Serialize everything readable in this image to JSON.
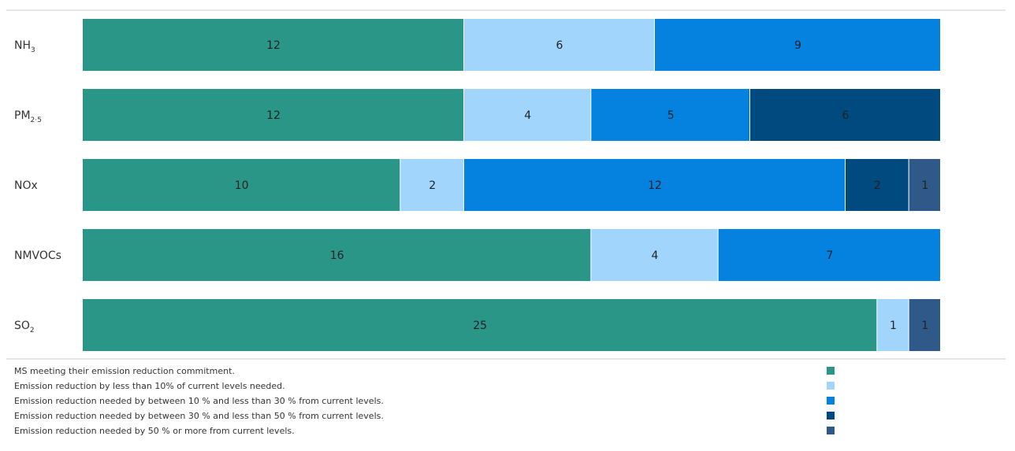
{
  "chart_data": {
    "type": "bar",
    "orientation": "horizontal",
    "stacked": true,
    "categories": [
      {
        "label": "NH",
        "sub": "3"
      },
      {
        "label": "PM",
        "sub": "2·5"
      },
      {
        "label": "NOx",
        "sub": ""
      },
      {
        "label": "NMVOCs",
        "sub": ""
      },
      {
        "label": "SO",
        "sub": "2"
      }
    ],
    "series": [
      {
        "name": "MS meeting their emission reduction commitment.",
        "color": "#2a9688",
        "values": [
          12,
          12,
          10,
          16,
          25
        ]
      },
      {
        "name": "Emission reduction by less than 10% of current levels needed.",
        "color": "#a2d5fc",
        "values": [
          6,
          4,
          2,
          4,
          1
        ]
      },
      {
        "name": "Emission reduction needed by between 10 % and less than 30 % from current levels.",
        "color": "#0581e0",
        "values": [
          9,
          5,
          12,
          7,
          0
        ]
      },
      {
        "name": "Emission reduction needed by between 30 % and less than 50 % from current levels.",
        "color": "#004a80",
        "values": [
          0,
          6,
          2,
          0,
          0
        ]
      },
      {
        "name": "Emission reduction needed by 50 % or more from current levels.",
        "color": "#2e5989",
        "values": [
          0,
          0,
          1,
          0,
          1
        ]
      }
    ],
    "xlim": [
      0,
      27
    ],
    "grid": false,
    "legend_position": "bottom"
  }
}
